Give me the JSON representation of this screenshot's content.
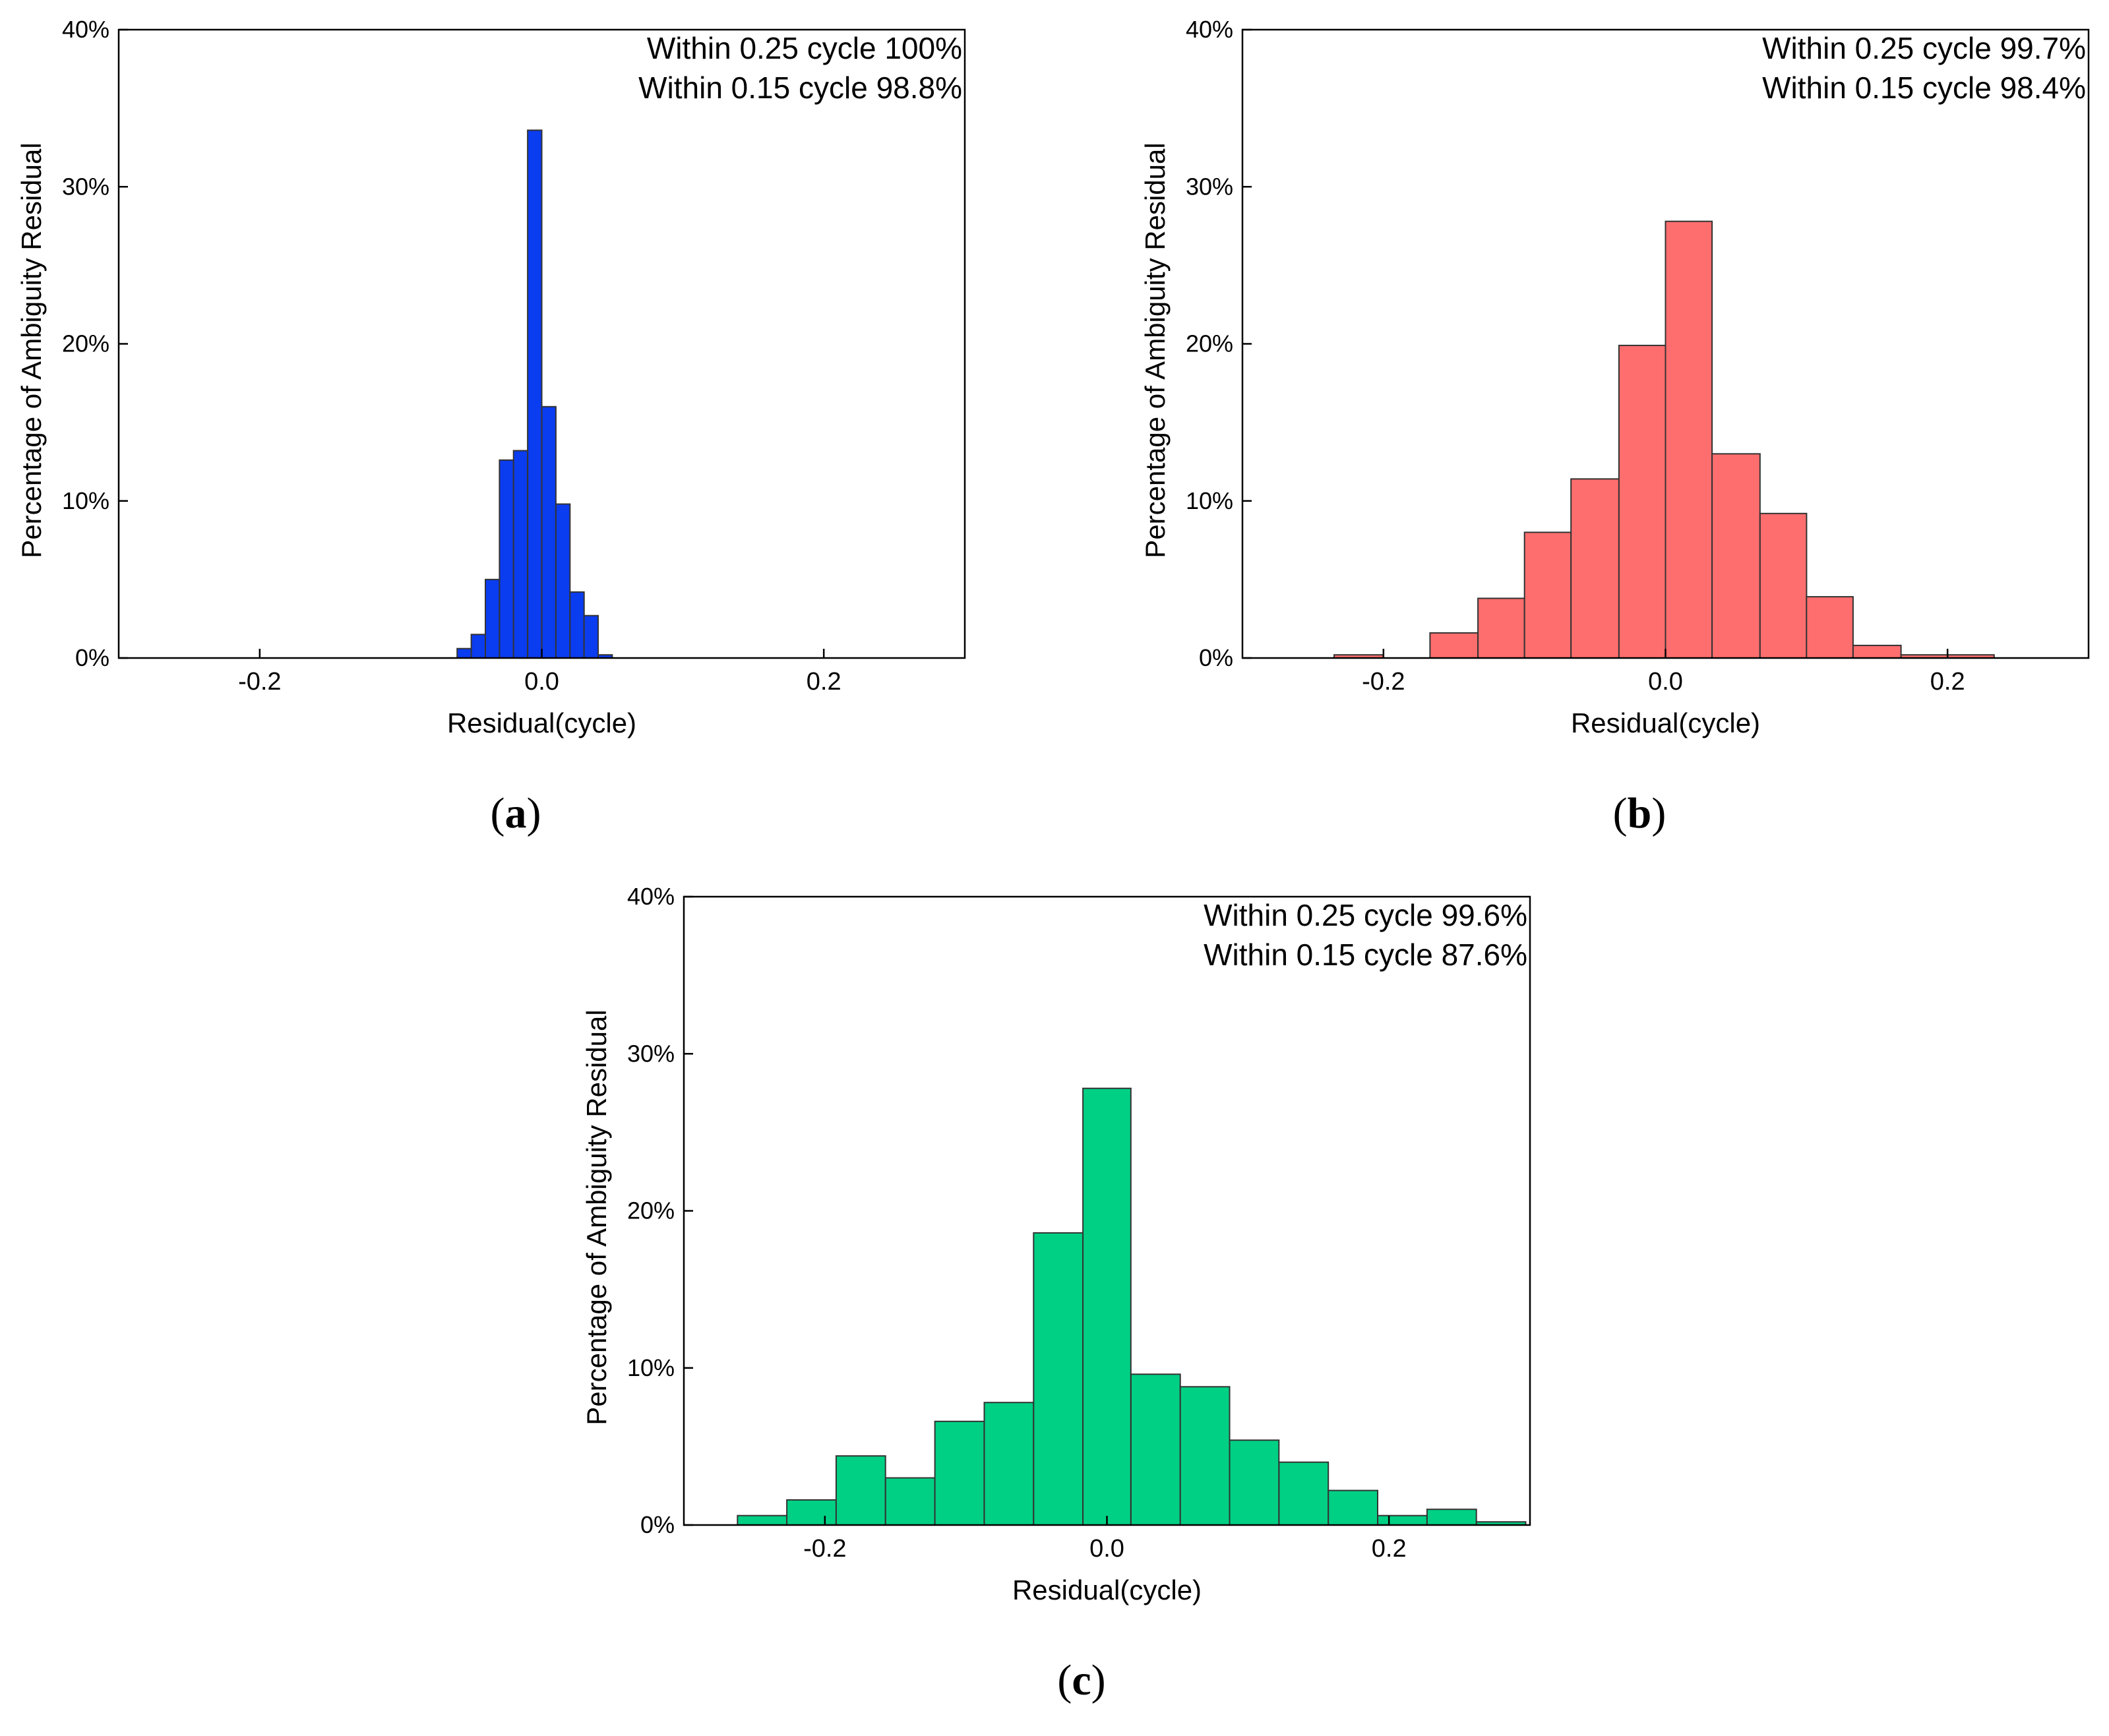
{
  "figure": {
    "ylabel": "Percentage of Ambiguity Residual",
    "xlabel": "Residual(cycle)"
  },
  "chart_data": [
    {
      "id": "a",
      "panel_label": "a",
      "type": "bar",
      "xlabel": "Residual(cycle)",
      "ylabel": "Percentage of Ambiguity Residual",
      "xlim": [
        -0.3,
        0.3
      ],
      "ylim": [
        0,
        40
      ],
      "xticks": [
        -0.2,
        0.0,
        0.2
      ],
      "xtick_labels": [
        "-0.2",
        "0.0",
        "0.2"
      ],
      "yticks": [
        0,
        10,
        20,
        30,
        40
      ],
      "ytick_labels": [
        "0%",
        "10%",
        "20%",
        "30%",
        "40%"
      ],
      "annotations": [
        "Within 0.25 cycle 100%",
        "Within 0.15 cycle 98.8%"
      ],
      "color": "#0a3cf0",
      "bin_edges": [
        -0.06,
        -0.05,
        -0.04,
        -0.03,
        -0.02,
        -0.01,
        0.0,
        0.01,
        0.02,
        0.03,
        0.04,
        0.05,
        0.06
      ],
      "values": [
        0.6,
        1.5,
        5.0,
        12.6,
        13.2,
        33.6,
        16.0,
        9.8,
        4.2,
        2.7,
        0.2,
        0.0
      ]
    },
    {
      "id": "b",
      "panel_label": "b",
      "type": "bar",
      "xlabel": "Residual(cycle)",
      "ylabel": "Percentage of Ambiguity Residual",
      "xlim": [
        -0.3,
        0.3
      ],
      "ylim": [
        0,
        40
      ],
      "xticks": [
        -0.2,
        0.0,
        0.2
      ],
      "xtick_labels": [
        "-0.2",
        "0.0",
        "0.2"
      ],
      "yticks": [
        0,
        10,
        20,
        30,
        40
      ],
      "ytick_labels": [
        "0%",
        "10%",
        "20%",
        "30%",
        "40%"
      ],
      "annotations": [
        "Within 0.25 cycle 99.7%",
        "Within 0.15 cycle 98.4%"
      ],
      "color": "#ff6e6e",
      "bin_edges": [
        -0.235,
        -0.2,
        -0.167,
        -0.133,
        -0.1,
        -0.067,
        -0.033,
        0.0,
        0.033,
        0.067,
        0.1,
        0.133,
        0.167,
        0.2,
        0.233
      ],
      "values": [
        0.2,
        0.0,
        1.6,
        3.8,
        8.0,
        11.4,
        19.9,
        27.8,
        13.0,
        9.2,
        3.9,
        0.8,
        0.2,
        0.2
      ]
    },
    {
      "id": "c",
      "panel_label": "c",
      "type": "bar",
      "xlabel": "Residual(cycle)",
      "ylabel": "Percentage of Ambiguity Residual",
      "xlim": [
        -0.3,
        0.3
      ],
      "ylim": [
        0,
        40
      ],
      "xticks": [
        -0.2,
        0.0,
        0.2
      ],
      "xtick_labels": [
        "-0.2",
        "0.0",
        "0.2"
      ],
      "yticks": [
        0,
        10,
        20,
        30,
        40
      ],
      "ytick_labels": [
        "0%",
        "10%",
        "20%",
        "30%",
        "40%"
      ],
      "annotations": [
        "Within 0.25 cycle 99.6%",
        "Within 0.15 cycle 87.6%"
      ],
      "color": "#00d084",
      "bin_edges": [
        -0.262,
        -0.227,
        -0.192,
        -0.157,
        -0.122,
        -0.087,
        -0.052,
        -0.017,
        0.017,
        0.052,
        0.087,
        0.122,
        0.157,
        0.192,
        0.227,
        0.262,
        0.297
      ],
      "values": [
        0.6,
        1.6,
        4.4,
        3.0,
        6.6,
        7.8,
        18.6,
        27.8,
        9.6,
        8.8,
        5.4,
        4.0,
        2.2,
        0.6,
        1.0,
        0.2
      ]
    }
  ]
}
